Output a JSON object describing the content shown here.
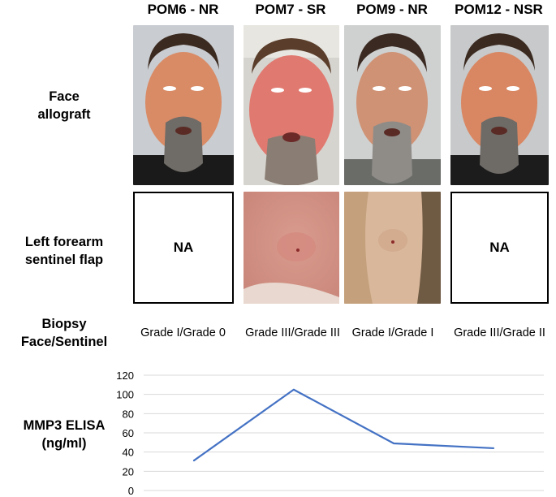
{
  "columns": [
    {
      "title": "POM6 - NR",
      "grade": "Grade I/Grade 0",
      "sentinel": "NA"
    },
    {
      "title": "POM7 - SR",
      "grade": "Grade III/Grade III",
      "sentinel": "photo"
    },
    {
      "title": "POM9 - NR",
      "grade": "Grade I/Grade I",
      "sentinel": "photo"
    },
    {
      "title": "POM12 - NSR",
      "grade": "Grade III/Grade II",
      "sentinel": "NA"
    }
  ],
  "row_labels": {
    "face_l1": "Face",
    "face_l2": "allograft",
    "sentinel_l1": "Left forearm",
    "sentinel_l2": "sentinel flap",
    "biopsy_l1": "Biopsy",
    "biopsy_l2": "Face/Sentinel",
    "elisa_l1": "MMP3 ELISA",
    "elisa_l2": "(ng/ml)"
  },
  "na_text": "NA",
  "colors": {
    "line": "#4472C4",
    "grid": "#d9d9d9"
  },
  "chart_data": {
    "type": "line",
    "categories": [
      "POM6 - NR",
      "POM7 - SR",
      "POM9 - NR",
      "POM12 - NSR"
    ],
    "series": [
      {
        "values": [
          31,
          105,
          49,
          44
        ]
      }
    ],
    "ylabel": "MMP3 ELISA (ng/ml)",
    "ylim": [
      0,
      120
    ],
    "yticks": [
      0,
      20,
      40,
      60,
      80,
      100,
      120
    ],
    "grid": true
  }
}
